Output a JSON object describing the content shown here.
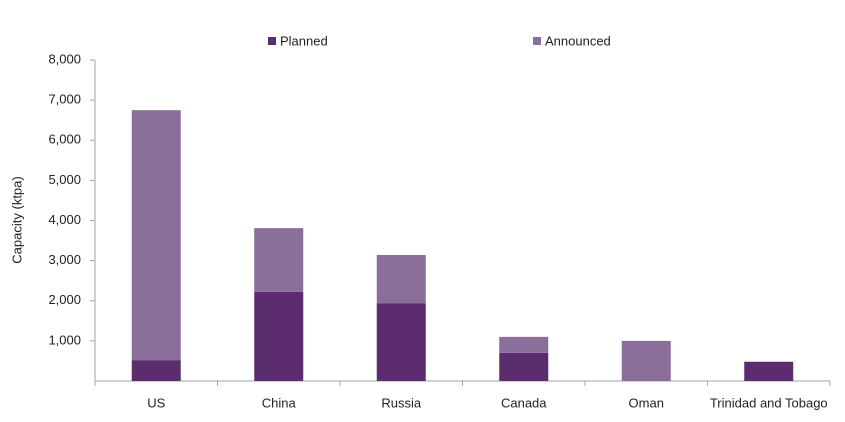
{
  "chart_data": {
    "type": "stacked-bar",
    "y_label": "Capacity (ktpa)",
    "categories": [
      "US",
      "China",
      "Russia",
      "Canada",
      "Oman",
      "Trinidad and Tobago"
    ],
    "series": [
      {
        "name": "Planned",
        "color": "#5b2d6e",
        "values": [
          520,
          2220,
          1940,
          700,
          0,
          480
        ]
      },
      {
        "name": "Announced",
        "color": "#8b6f9b",
        "values": [
          6230,
          1590,
          1200,
          400,
          1000,
          0
        ]
      }
    ],
    "ylim": [
      0,
      8000
    ],
    "yticks": [
      {
        "value": 1000,
        "label": "1,000"
      },
      {
        "value": 2000,
        "label": "2,000"
      },
      {
        "value": 3000,
        "label": "3,000"
      },
      {
        "value": 4000,
        "label": "4,000"
      },
      {
        "value": 5000,
        "label": "5,000"
      },
      {
        "value": 6000,
        "label": "6,000"
      },
      {
        "value": 7000,
        "label": "7,000"
      },
      {
        "value": 8000,
        "label": "8,000"
      }
    ],
    "grid": false,
    "legend": "top"
  }
}
